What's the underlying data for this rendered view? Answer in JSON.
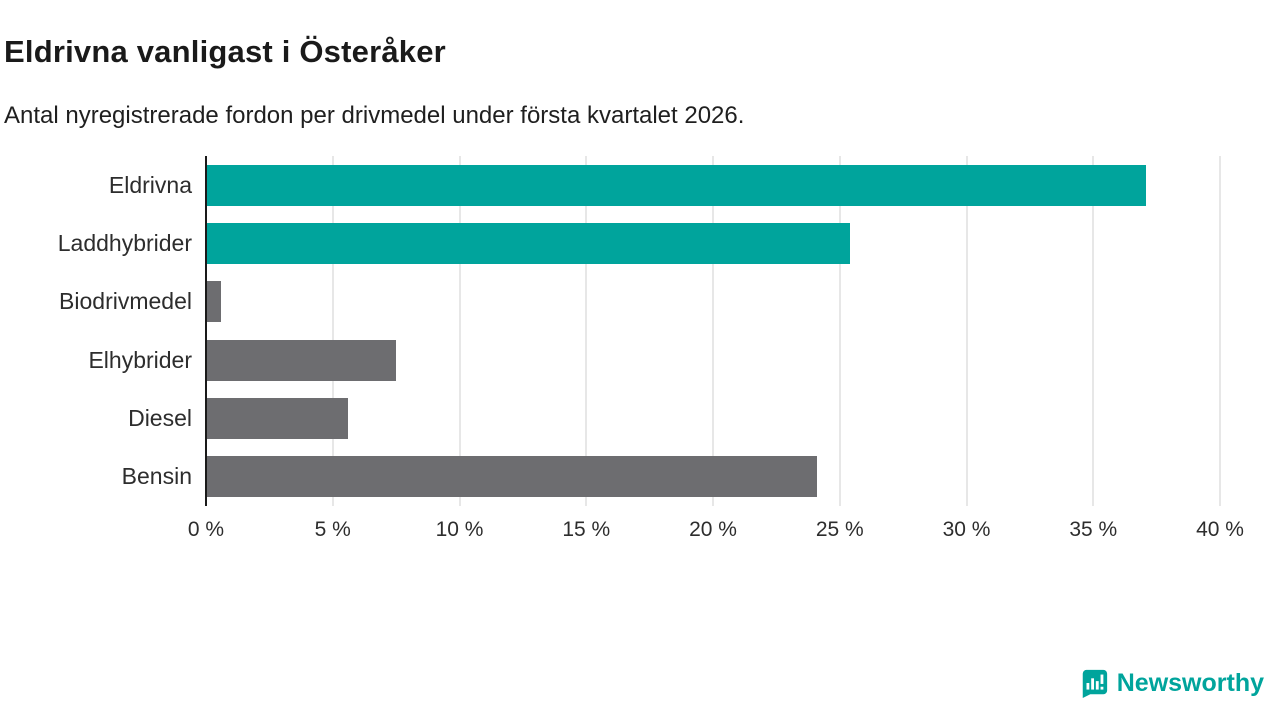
{
  "chart_data": {
    "type": "bar",
    "orientation": "horizontal",
    "title": "Eldrivna vanligast i Österåker",
    "subtitle": "Antal nyregistrerade fordon per drivmedel under första kvartalet 2026.",
    "categories": [
      "Eldrivna",
      "Laddhybrider",
      "Biodrivmedel",
      "Elhybrider",
      "Diesel",
      "Bensin"
    ],
    "values": [
      37.1,
      25.4,
      0.6,
      7.5,
      5.6,
      24.1
    ],
    "bar_colors": [
      "#00a49c",
      "#00a49c",
      "#6d6d70",
      "#6d6d70",
      "#6d6d70",
      "#6d6d70"
    ],
    "xlabel": "",
    "ylabel": "",
    "xlim": [
      0,
      40
    ],
    "x_tick_values": [
      0,
      5,
      10,
      15,
      20,
      25,
      30,
      35,
      40
    ],
    "x_ticks": [
      "0 %",
      "5 %",
      "10 %",
      "15 %",
      "20 %",
      "25 %",
      "30 %",
      "35 %",
      "40 %"
    ],
    "grid": true,
    "legend": false,
    "accent_color": "#00a49c",
    "neutral_color": "#6d6d70"
  },
  "branding": {
    "logo_text": "Newsworthy",
    "brand_color": "#00a49c"
  }
}
